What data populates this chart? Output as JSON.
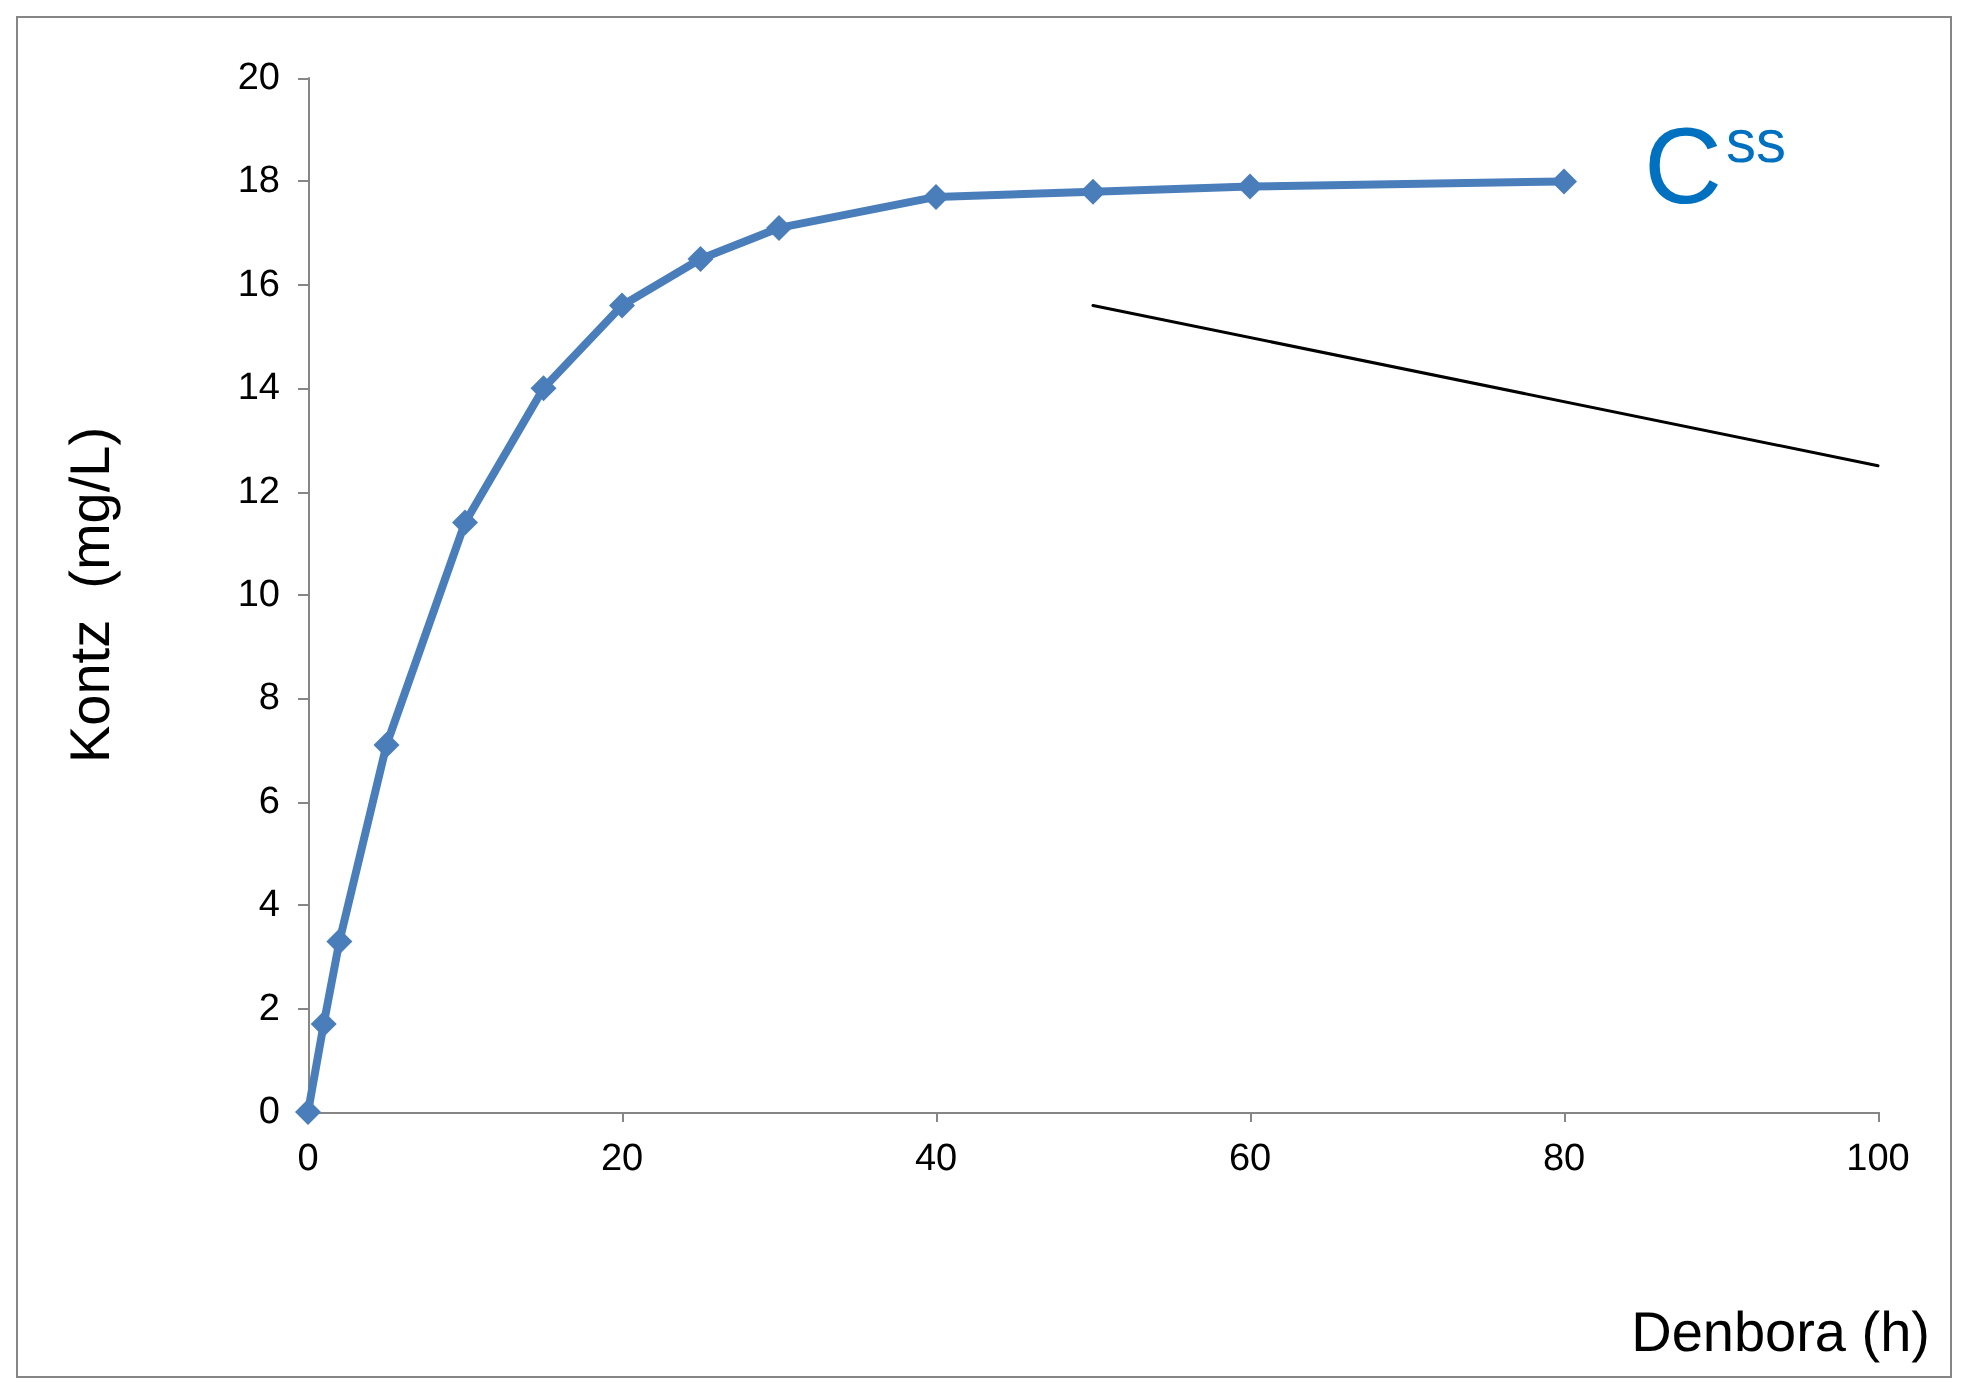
{
  "chart_data": {
    "type": "line",
    "xlabel": "Denbora (h)",
    "ylabel": "Kontz  (mg/L)",
    "series": [
      {
        "color": "#4a7ebb",
        "x": [
          0,
          1,
          2,
          5,
          10,
          15,
          20,
          25,
          30,
          40,
          50,
          60,
          80
        ],
        "values": [
          0,
          1.7,
          3.3,
          7.1,
          11.4,
          14,
          15.6,
          16.5,
          17.1,
          17.7,
          17.8,
          17.9,
          18
        ]
      },
      {
        "color": "#000000",
        "x": [
          50,
          100
        ],
        "values": [
          15.6,
          12.5
        ],
        "marker": "none"
      }
    ],
    "xlim": [
      0,
      100
    ],
    "xticks": [
      0,
      20,
      40,
      60,
      80,
      100
    ],
    "ylim": [
      0,
      20
    ],
    "yticks": [
      0,
      2,
      4,
      6,
      8,
      10,
      12,
      14,
      16,
      18,
      20
    ],
    "annotations": [
      {
        "text": "C$^{ss}$",
        "x": 80,
        "y": 18
      }
    ],
    "grid": false,
    "marker": "diamond",
    "line_style": "solid"
  }
}
